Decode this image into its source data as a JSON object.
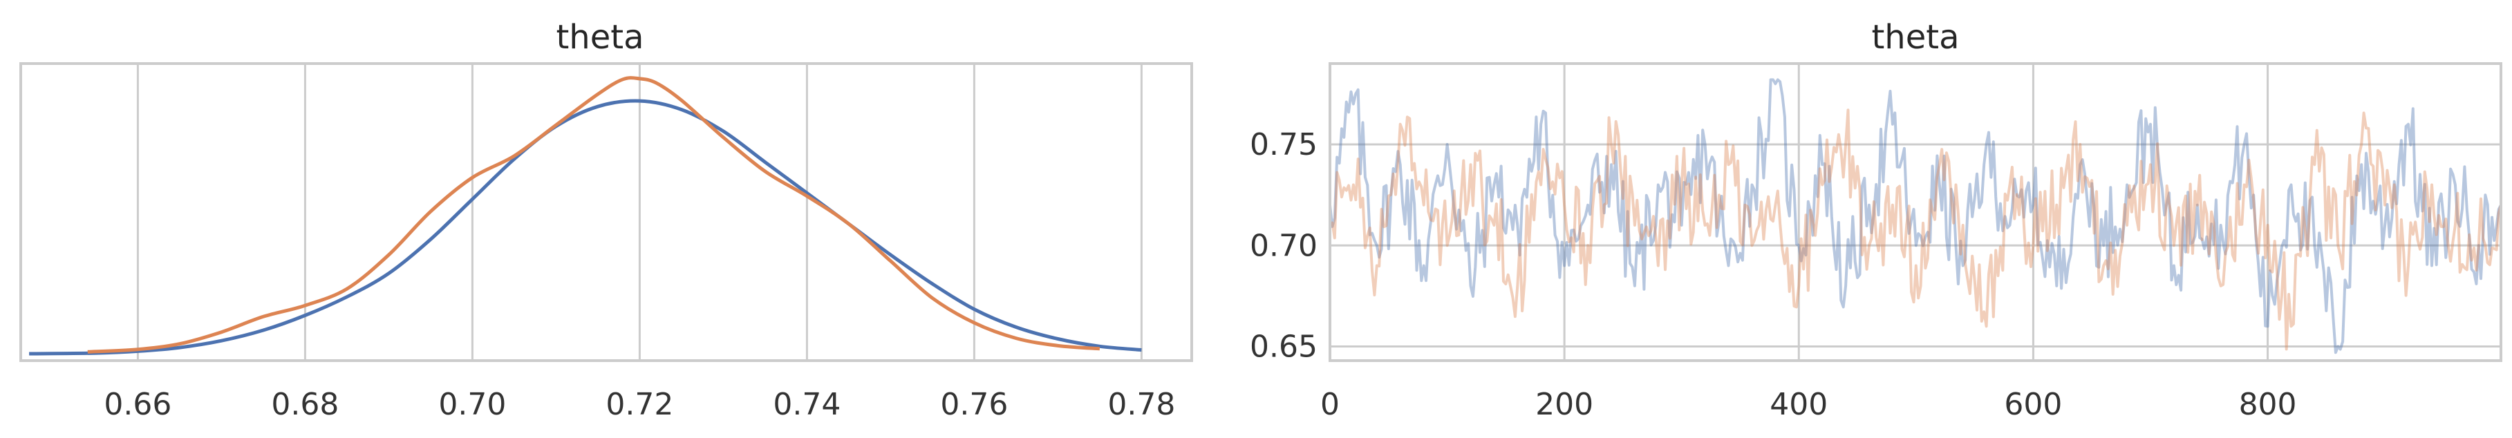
{
  "chart_data": [
    {
      "type": "line",
      "title": "theta",
      "xlabel": "",
      "ylabel": "",
      "xlim": [
        0.646,
        0.786
      ],
      "xticks": [
        "0.66",
        "0.68",
        "0.70",
        "0.72",
        "0.74",
        "0.76",
        "0.78"
      ],
      "grid": "vertical",
      "series": [
        {
          "color": "#4c72b0",
          "x": [
            0.647,
            0.655,
            0.66,
            0.665,
            0.67,
            0.675,
            0.68,
            0.685,
            0.69,
            0.695,
            0.7,
            0.705,
            0.71,
            0.715,
            0.72,
            0.725,
            0.73,
            0.735,
            0.74,
            0.745,
            0.75,
            0.755,
            0.76,
            0.765,
            0.77,
            0.775,
            0.78
          ],
          "y": [
            0.0,
            0.1,
            0.4,
            1.0,
            2.1,
            3.8,
            6.2,
            9.2,
            13.0,
            18.5,
            25.0,
            31.5,
            36.8,
            40.0,
            40.9,
            39.5,
            36.0,
            31.0,
            26.0,
            21.0,
            16.0,
            11.3,
            7.2,
            4.3,
            2.4,
            1.2,
            0.6
          ]
        },
        {
          "color": "#dd8452",
          "x": [
            0.654,
            0.66,
            0.665,
            0.67,
            0.675,
            0.68,
            0.685,
            0.69,
            0.695,
            0.7,
            0.705,
            0.71,
            0.715,
            0.718,
            0.72,
            0.722,
            0.725,
            0.73,
            0.735,
            0.74,
            0.745,
            0.75,
            0.755,
            0.76,
            0.765,
            0.77,
            0.775
          ],
          "y": [
            0.3,
            0.7,
            1.6,
            3.5,
            6.0,
            7.8,
            10.5,
            16.0,
            23.0,
            28.5,
            32.0,
            37.0,
            42.0,
            44.4,
            44.5,
            43.8,
            41.0,
            35.0,
            29.5,
            25.5,
            21.0,
            15.0,
            9.0,
            5.0,
            2.5,
            1.3,
            0.8
          ]
        }
      ]
    },
    {
      "type": "line",
      "title": "theta",
      "xlabel": "",
      "ylabel": "",
      "xlim": [
        0,
        999
      ],
      "ylim": [
        0.643,
        0.79
      ],
      "xticks": [
        "0",
        "200",
        "400",
        "600",
        "800"
      ],
      "yticks": [
        "0.65",
        "0.70",
        "0.75"
      ],
      "grid": "both",
      "series": [
        {
          "color": "#4c72b0",
          "opacity": 0.4,
          "x": [
            0,
            20,
            40,
            60,
            80,
            100,
            120,
            140,
            160,
            180,
            200,
            220,
            240,
            260,
            280,
            300,
            320,
            340,
            360,
            380,
            400,
            420,
            440,
            460,
            480,
            500,
            520,
            540,
            560,
            580,
            600,
            620,
            640,
            660,
            680,
            700,
            720,
            740,
            760,
            780,
            800,
            820,
            840,
            860,
            880,
            900,
            920,
            940,
            960,
            980,
            999
          ],
          "y": [
            0.72,
            0.77,
            0.7,
            0.74,
            0.69,
            0.75,
            0.68,
            0.73,
            0.71,
            0.76,
            0.69,
            0.72,
            0.74,
            0.68,
            0.73,
            0.71,
            0.75,
            0.69,
            0.73,
            0.78,
            0.7,
            0.74,
            0.68,
            0.72,
            0.76,
            0.7,
            0.73,
            0.69,
            0.75,
            0.71,
            0.72,
            0.68,
            0.74,
            0.7,
            0.73,
            0.76,
            0.69,
            0.72,
            0.71,
            0.75,
            0.66,
            0.73,
            0.7,
            0.65,
            0.74,
            0.71,
            0.76,
            0.69,
            0.73,
            0.7,
            0.72
          ]
        },
        {
          "color": "#dd8452",
          "opacity": 0.4,
          "x": [
            0,
            20,
            40,
            60,
            80,
            100,
            120,
            140,
            160,
            180,
            200,
            220,
            240,
            260,
            280,
            300,
            320,
            340,
            360,
            380,
            400,
            420,
            440,
            460,
            480,
            500,
            520,
            540,
            560,
            580,
            600,
            620,
            640,
            660,
            680,
            700,
            720,
            740,
            760,
            780,
            800,
            820,
            840,
            860,
            880,
            900,
            920,
            940,
            960,
            980,
            999
          ],
          "y": [
            0.71,
            0.73,
            0.69,
            0.76,
            0.72,
            0.7,
            0.74,
            0.71,
            0.68,
            0.73,
            0.72,
            0.7,
            0.75,
            0.71,
            0.69,
            0.73,
            0.71,
            0.74,
            0.7,
            0.72,
            0.68,
            0.73,
            0.75,
            0.7,
            0.72,
            0.69,
            0.74,
            0.71,
            0.66,
            0.73,
            0.7,
            0.72,
            0.75,
            0.69,
            0.71,
            0.74,
            0.7,
            0.72,
            0.68,
            0.73,
            0.71,
            0.66,
            0.74,
            0.7,
            0.75,
            0.72,
            0.69,
            0.73,
            0.71,
            0.7,
            0.72
          ]
        }
      ]
    }
  ]
}
